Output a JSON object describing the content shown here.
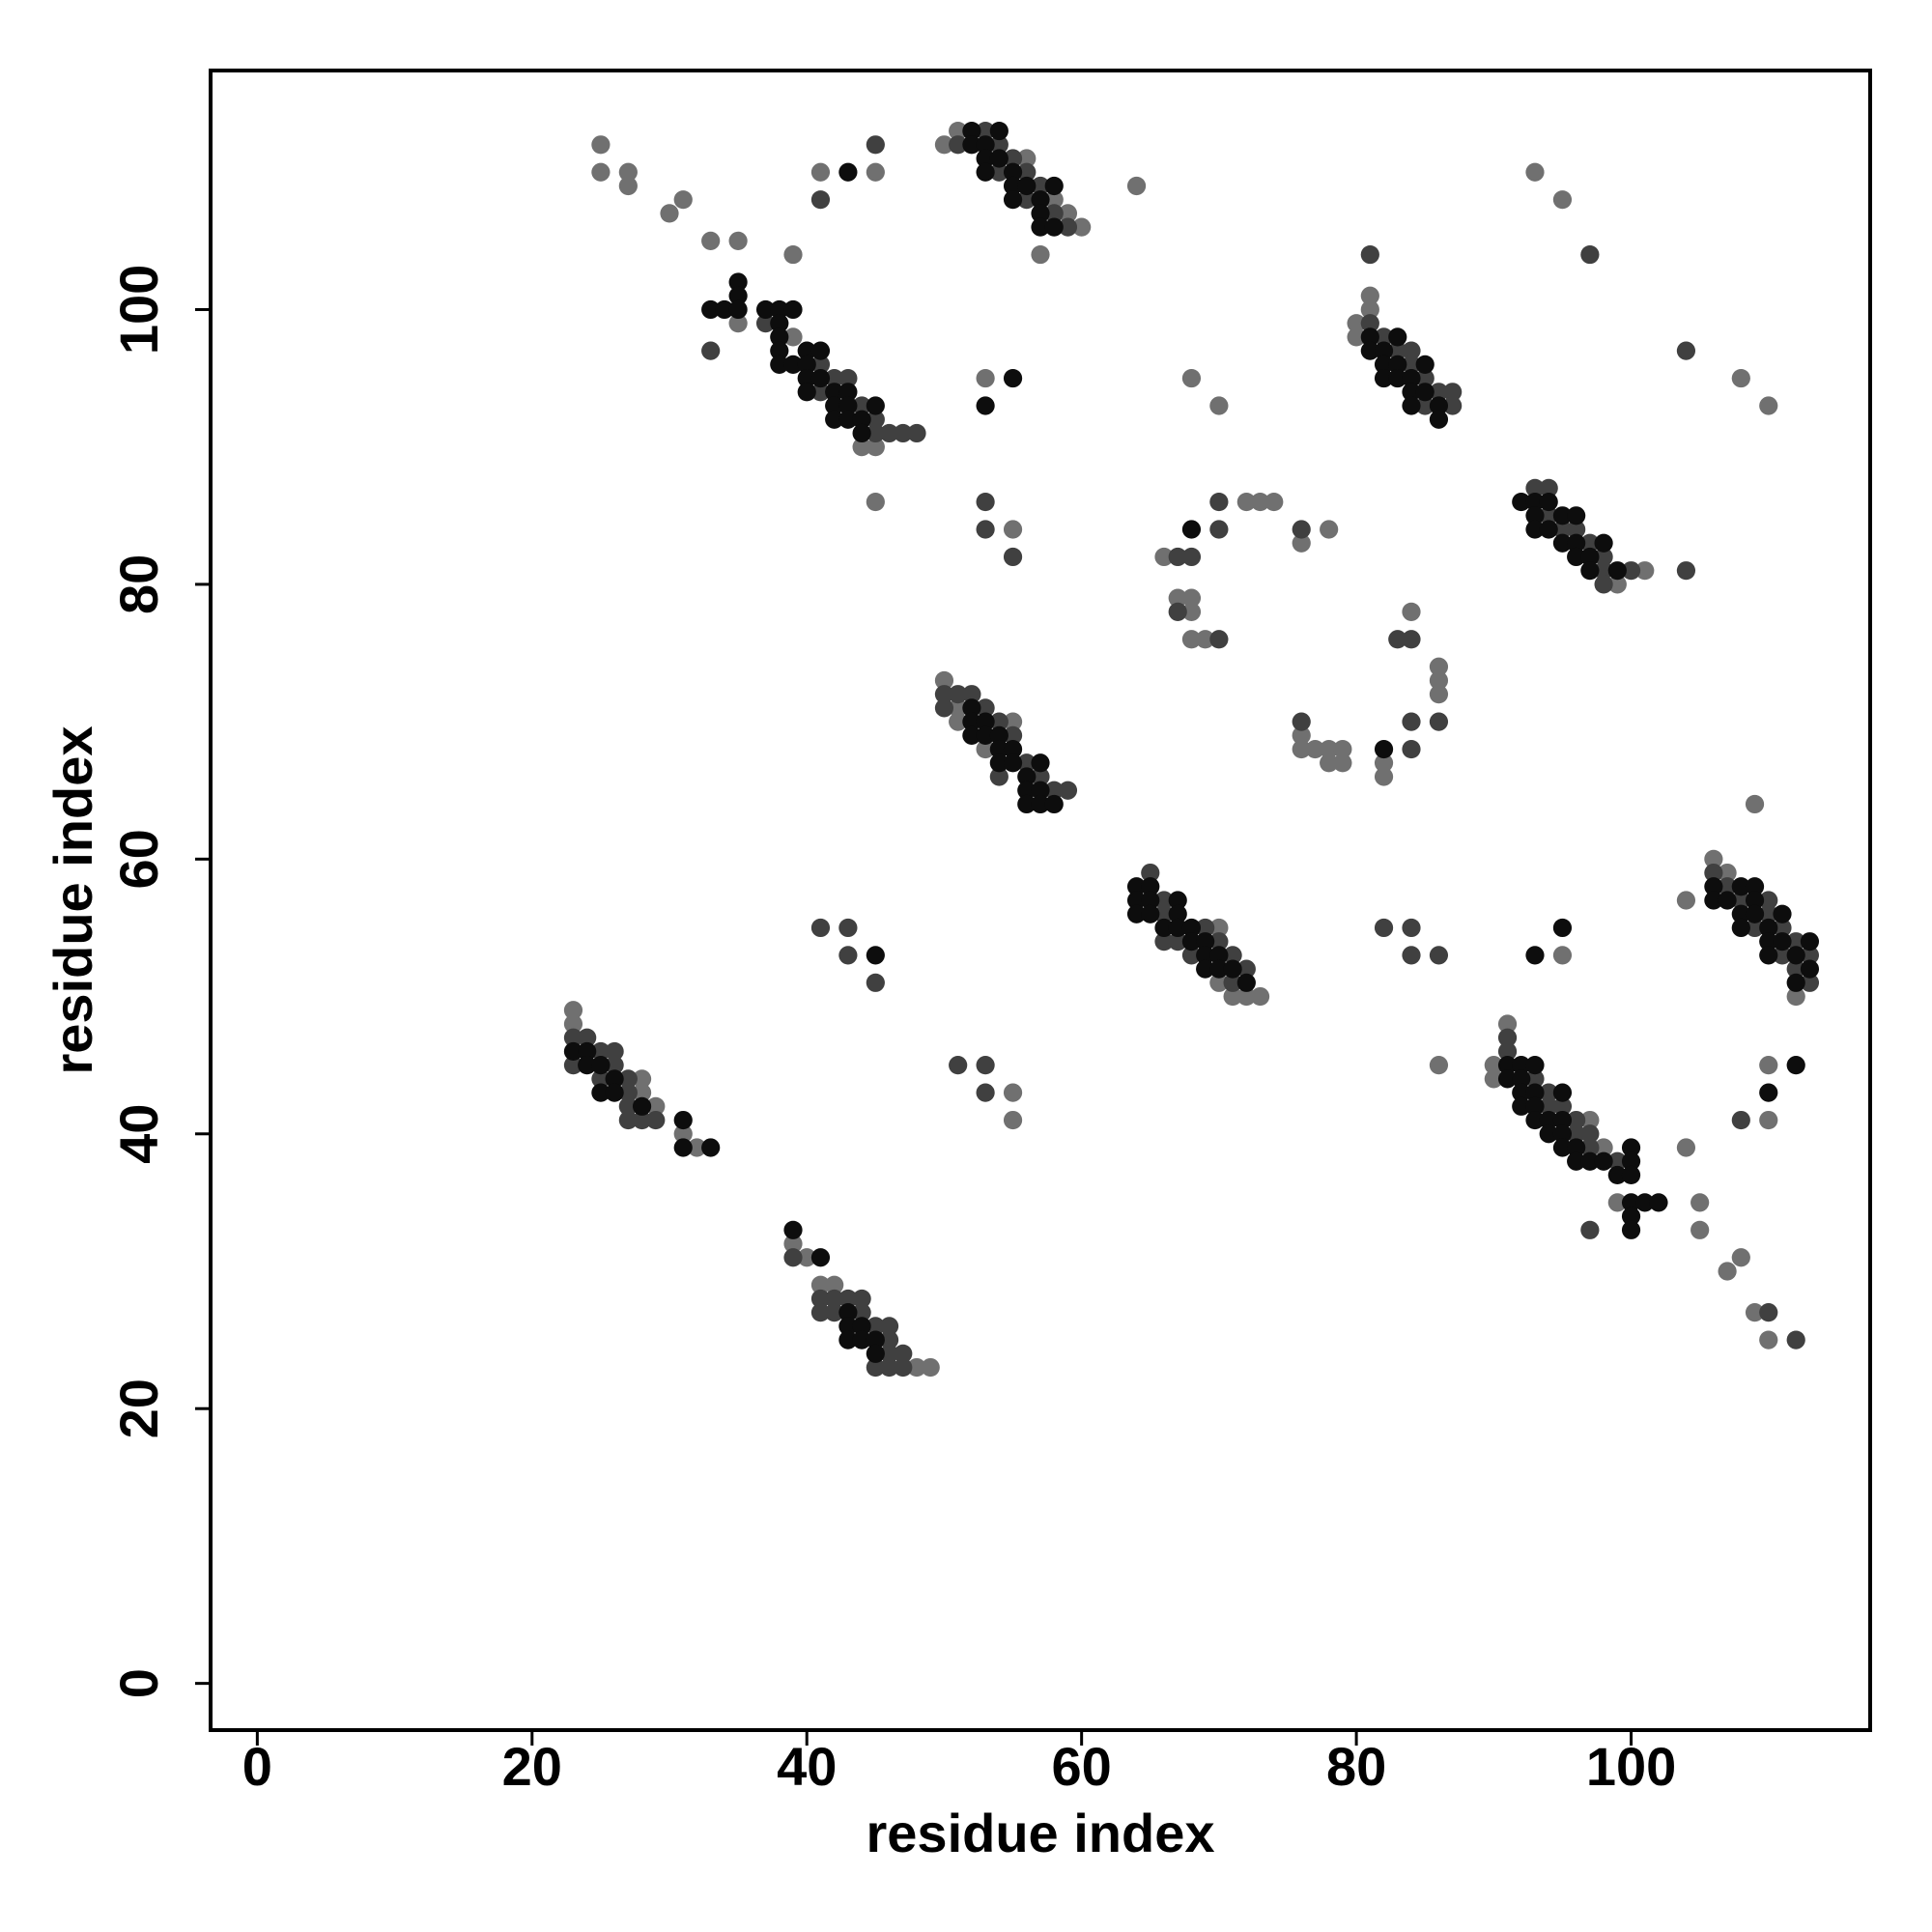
{
  "chart_data": {
    "type": "scatter",
    "xlabel": "residue index",
    "ylabel": "residue index",
    "xlim": [
      -3.4,
      117.4
    ],
    "ylim": [
      -3.4,
      117.4
    ],
    "xticks": [
      0,
      20,
      40,
      60,
      80,
      100
    ],
    "yticks": [
      0,
      20,
      40,
      60,
      80,
      100
    ],
    "grid": false,
    "series": [
      {
        "color": "#707070",
        "x": [
          25,
          25,
          27,
          27,
          30,
          31,
          33,
          35,
          39,
          41,
          45,
          50,
          51,
          56,
          58,
          59,
          60,
          57,
          64,
          35,
          39,
          44,
          45,
          45,
          53,
          55,
          68,
          70,
          81,
          81,
          80,
          80,
          93,
          95,
          108,
          110,
          99,
          101,
          72,
          73,
          74,
          66,
          67,
          68,
          68,
          68,
          69,
          76,
          78,
          84,
          86,
          86,
          86,
          82,
          82,
          76,
          76,
          77,
          78,
          78,
          79,
          79,
          50,
          51,
          51,
          55,
          53,
          70,
          70,
          71,
          72,
          73,
          104,
          106,
          107,
          112,
          109,
          86,
          95,
          55,
          55,
          23,
          23,
          28,
          28,
          29,
          31,
          32,
          39,
          40,
          41,
          42,
          48,
          49,
          91,
          90,
          90,
          97,
          98,
          99,
          104,
          105,
          105,
          107,
          108,
          109,
          110,
          110,
          110
        ],
        "y": [
          112,
          110,
          110,
          109,
          107,
          108,
          105,
          105,
          104,
          110,
          110,
          112,
          113,
          111,
          108,
          107,
          106,
          104,
          109,
          99,
          98,
          90,
          90,
          86,
          95,
          84,
          95,
          93,
          101,
          100,
          99,
          98,
          110,
          108,
          95,
          93,
          80,
          81,
          86,
          86,
          86,
          82,
          79,
          79,
          78,
          76,
          76,
          83,
          84,
          78,
          74,
          73,
          72,
          67,
          66,
          69,
          68,
          68,
          68,
          67,
          68,
          67,
          73,
          71,
          70,
          70,
          68,
          55,
          51,
          50,
          50,
          50,
          57,
          60,
          59,
          50,
          64,
          45,
          53,
          43,
          41,
          49,
          48,
          44,
          43,
          42,
          40,
          39,
          32,
          31,
          29,
          29,
          23,
          23,
          48,
          45,
          44,
          41,
          39,
          35,
          39,
          35,
          33,
          30,
          31,
          27,
          25,
          45,
          41
        ]
      },
      {
        "color": "#404040",
        "x": [
          41,
          45,
          51,
          53,
          54,
          54,
          55,
          56,
          57,
          56,
          58,
          59,
          33,
          37,
          41,
          42,
          43,
          41,
          44,
          45,
          45,
          46,
          47,
          48,
          53,
          53,
          55,
          81,
          81,
          82,
          83,
          84,
          84,
          85,
          86,
          87,
          85,
          87,
          97,
          104,
          93,
          94,
          94,
          95,
          96,
          97,
          98,
          98,
          100,
          98,
          104,
          70,
          70,
          67,
          68,
          67,
          70,
          76,
          83,
          84,
          86,
          84,
          84,
          76,
          50,
          51,
          52,
          50,
          53,
          54,
          55,
          56,
          54,
          57,
          58,
          59,
          65,
          66,
          66,
          69,
          66,
          67,
          70,
          68,
          71,
          72,
          71,
          106,
          107,
          108,
          110,
          110,
          109,
          111,
          112,
          111,
          113,
          112,
          113,
          82,
          84,
          84,
          86,
          41,
          43,
          43,
          45,
          51,
          53,
          53,
          23,
          24,
          25,
          26,
          23,
          26,
          25,
          27,
          27,
          27,
          27,
          28,
          29,
          39,
          41,
          42,
          43,
          44,
          41,
          42,
          44,
          45,
          46,
          46,
          46,
          47,
          45,
          46,
          47,
          91,
          91,
          93,
          94,
          94,
          95,
          96,
          96,
          97,
          97,
          99,
          97,
          110,
          112,
          108
        ],
        "y": [
          108,
          112,
          112,
          113,
          112,
          110,
          111,
          110,
          109,
          108,
          107,
          106,
          97,
          99,
          96,
          95,
          95,
          94,
          93,
          92,
          91,
          91,
          91,
          91,
          86,
          84,
          82,
          104,
          99,
          98,
          97,
          97,
          96,
          95,
          94,
          94,
          93,
          93,
          104,
          97,
          87,
          87,
          85,
          84,
          84,
          83,
          82,
          81,
          81,
          80,
          81,
          86,
          84,
          82,
          82,
          78,
          76,
          84,
          76,
          76,
          70,
          70,
          68,
          70,
          72,
          72,
          72,
          71,
          71,
          70,
          69,
          67,
          66,
          66,
          65,
          65,
          59,
          57,
          56,
          55,
          54,
          54,
          54,
          53,
          53,
          52,
          51,
          59,
          58,
          57,
          57,
          56,
          55,
          55,
          54,
          53,
          53,
          52,
          51,
          55,
          55,
          53,
          53,
          55,
          55,
          53,
          51,
          45,
          45,
          43,
          47,
          47,
          46,
          46,
          45,
          45,
          44,
          44,
          43,
          42,
          41,
          41,
          41,
          31,
          28,
          28,
          28,
          28,
          27,
          27,
          27,
          26,
          26,
          25,
          24,
          24,
          23,
          23,
          23,
          47,
          46,
          44,
          43,
          42,
          42,
          41,
          40,
          40,
          39,
          38,
          33,
          27,
          25,
          41
        ]
      },
      {
        "color": "#0d0d0d",
        "x": [
          43,
          52,
          52,
          54,
          53,
          53,
          54,
          53,
          55,
          55,
          56,
          58,
          55,
          57,
          57,
          57,
          58,
          33,
          34,
          35,
          35,
          35,
          37,
          38,
          39,
          38,
          38,
          38,
          40,
          41,
          38,
          39,
          40,
          40,
          41,
          40,
          42,
          43,
          42,
          43,
          45,
          42,
          43,
          44,
          44,
          55,
          53,
          81,
          83,
          81,
          82,
          82,
          83,
          85,
          82,
          83,
          84,
          84,
          85,
          84,
          86,
          86,
          92,
          93,
          94,
          93,
          95,
          96,
          93,
          94,
          95,
          96,
          98,
          96,
          97,
          97,
          99,
          68,
          82,
          52,
          52,
          53,
          52,
          53,
          54,
          54,
          55,
          54,
          55,
          57,
          56,
          56,
          57,
          56,
          57,
          58,
          64,
          65,
          64,
          65,
          67,
          64,
          65,
          67,
          66,
          67,
          68,
          68,
          69,
          69,
          70,
          69,
          70,
          71,
          72,
          106,
          108,
          109,
          106,
          107,
          109,
          108,
          109,
          111,
          108,
          110,
          110,
          111,
          113,
          110,
          112,
          113,
          112,
          93,
          95,
          45,
          23,
          24,
          24,
          25,
          26,
          25,
          26,
          28,
          31,
          31,
          33,
          39,
          41,
          43,
          43,
          44,
          43,
          44,
          45,
          45,
          91,
          92,
          93,
          91,
          92,
          92,
          93,
          95,
          92,
          93,
          93,
          94,
          95,
          94,
          95,
          95,
          96,
          96,
          97,
          98,
          100,
          99,
          100,
          100,
          100,
          101,
          102,
          100,
          100,
          110,
          112
        ],
        "y": [
          110,
          113,
          112,
          113,
          112,
          111,
          111,
          110,
          110,
          109,
          109,
          109,
          108,
          108,
          107,
          106,
          106,
          100,
          100,
          102,
          101,
          100,
          100,
          100,
          100,
          99,
          98,
          97,
          97,
          97,
          96,
          96,
          96,
          95,
          95,
          94,
          94,
          94,
          93,
          93,
          93,
          92,
          92,
          92,
          91,
          95,
          93,
          98,
          98,
          97,
          97,
          96,
          96,
          96,
          95,
          95,
          95,
          94,
          94,
          93,
          93,
          92,
          86,
          86,
          86,
          85,
          85,
          85,
          84,
          84,
          83,
          83,
          83,
          82,
          82,
          81,
          81,
          84,
          68,
          71,
          70,
          70,
          69,
          69,
          69,
          68,
          68,
          67,
          67,
          67,
          66,
          65,
          65,
          64,
          64,
          64,
          58,
          58,
          57,
          57,
          57,
          56,
          56,
          56,
          55,
          55,
          55,
          54,
          54,
          53,
          53,
          52,
          52,
          52,
          51,
          58,
          58,
          58,
          57,
          57,
          57,
          56,
          56,
          56,
          55,
          55,
          54,
          54,
          54,
          53,
          53,
          52,
          51,
          53,
          55,
          53,
          46,
          46,
          45,
          45,
          44,
          43,
          43,
          42,
          41,
          39,
          39,
          33,
          31,
          27,
          26,
          26,
          25,
          25,
          25,
          24,
          45,
          45,
          45,
          44,
          44,
          43,
          43,
          43,
          42,
          42,
          41,
          41,
          41,
          40,
          40,
          39,
          39,
          38,
          38,
          38,
          39,
          37,
          38,
          37,
          35,
          35,
          35,
          34,
          33,
          43,
          45
        ]
      }
    ]
  }
}
